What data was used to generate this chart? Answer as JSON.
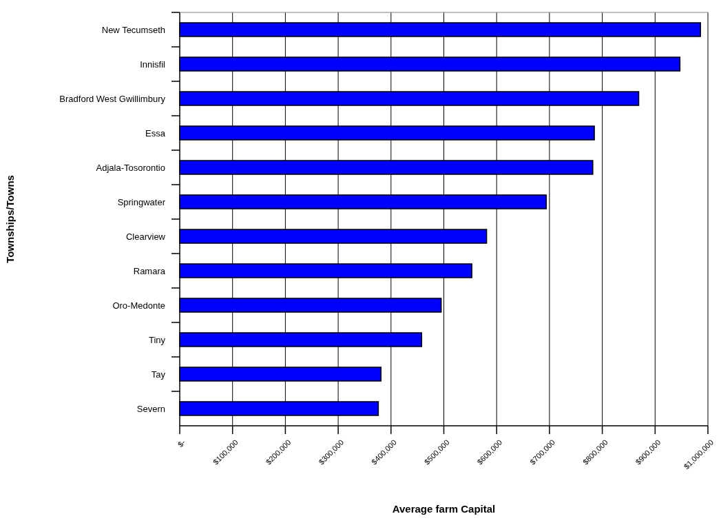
{
  "chart_data": {
    "type": "bar",
    "orientation": "horizontal",
    "xlabel": "Average farm Capital",
    "ylabel": "Townships/Towns",
    "categories": [
      "New Tecumseth",
      "Innisfil",
      "Bradford West Gwillimbury",
      "Essa",
      "Adjala-Tosorontio",
      "Springwater",
      "Clearview",
      "Ramara",
      "Oro-Medonte",
      "Tiny",
      "Tay",
      "Severn"
    ],
    "values": [
      986000,
      947000,
      869000,
      785000,
      782000,
      694000,
      581000,
      553000,
      495000,
      458000,
      381000,
      376000
    ],
    "color": "#0000ff",
    "xlim": [
      0,
      1000000
    ],
    "xticks": [
      {
        "value": 0,
        "label": "$-"
      },
      {
        "value": 100000,
        "label": "$100,000"
      },
      {
        "value": 200000,
        "label": "$200,000"
      },
      {
        "value": 300000,
        "label": "$300,000"
      },
      {
        "value": 400000,
        "label": "$400,000"
      },
      {
        "value": 500000,
        "label": "$500,000"
      },
      {
        "value": 600000,
        "label": "$600,000"
      },
      {
        "value": 700000,
        "label": "$700,000"
      },
      {
        "value": 800000,
        "label": "$800,000"
      },
      {
        "value": 900000,
        "label": "$900,000"
      },
      {
        "value": 1000000,
        "label": "$1,000,000"
      }
    ],
    "grid": "x"
  }
}
